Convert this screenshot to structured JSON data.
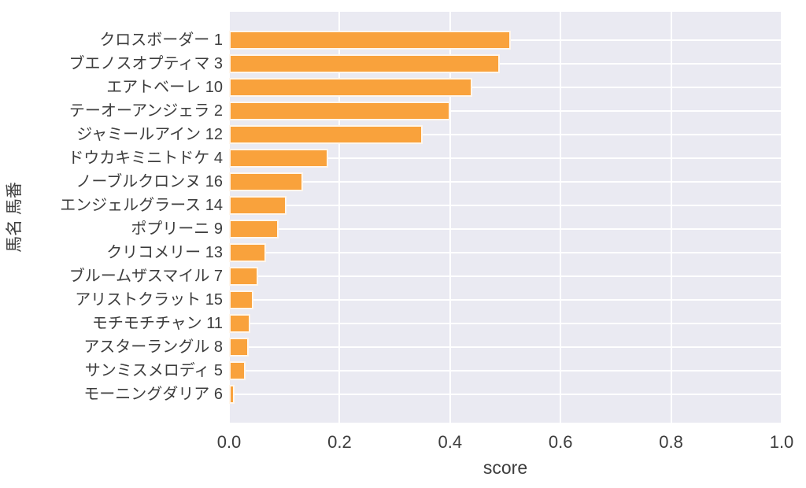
{
  "chart_data": {
    "type": "bar",
    "orientation": "horizontal",
    "title": "",
    "xlabel": "score",
    "ylabel": "馬名 馬番",
    "xlim": [
      0.0,
      1.0
    ],
    "xticks": [
      "0.0",
      "0.2",
      "0.4",
      "0.6",
      "0.8",
      "1.0"
    ],
    "xtick_values": [
      0.0,
      0.2,
      0.4,
      0.6,
      0.8,
      1.0
    ],
    "grid": true,
    "legend": false,
    "categories": [
      "クロスボーダー 1",
      "ブエノスオプティマ 3",
      "エアトベーレ 10",
      "テーオーアンジェラ 2",
      "ジャミールアイン 12",
      "ドウカキミニトドケ 4",
      "ノーブルクロンヌ 16",
      "エンジェルグラース 14",
      "ポプリーニ 9",
      "クリコメリー 13",
      "ブルームザスマイル 7",
      "アリストクラット 15",
      "モチモチチャン 11",
      "アスターラングル 8",
      "サンミスメロディ 5",
      "モーニングダリア 6"
    ],
    "values": [
      0.51,
      0.49,
      0.44,
      0.4,
      0.35,
      0.18,
      0.134,
      0.104,
      0.09,
      0.067,
      0.053,
      0.044,
      0.038,
      0.036,
      0.03,
      0.01
    ],
    "colors": {
      "bar": "#F9A23C",
      "plot_background": "#EAEAF2",
      "grid": "#FFFFFF",
      "text": "#3D3D3D",
      "figure_background": "#FFFFFF"
    }
  }
}
